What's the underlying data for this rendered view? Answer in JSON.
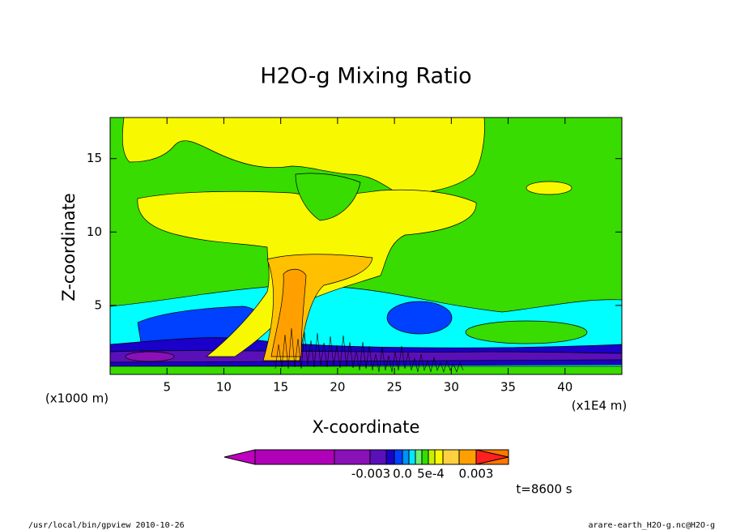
{
  "chart_data": {
    "type": "contour",
    "title": "H2O-g Mixing Ratio",
    "xlabel": "X-coordinate",
    "ylabel": "Z-coordinate",
    "x_unit_left": "(x1000 m)",
    "x_unit_right": "(x1E4 m)",
    "xlim": [
      0,
      45
    ],
    "xticks": [
      5,
      10,
      15,
      20,
      25,
      30,
      35,
      40
    ],
    "ylim": [
      0.3,
      17.8
    ],
    "yticks": [
      5,
      10,
      15
    ],
    "colorbar": {
      "labels": [
        "-0.003",
        "0.0",
        "5e-4",
        "0.003"
      ],
      "colors": [
        "#c000c0",
        "#b000b8",
        "#8a10b8",
        "#5a10b8",
        "#1a00c8",
        "#0040ff",
        "#0090ff",
        "#00e8ff",
        "#70f070",
        "#30e000",
        "#c8f000",
        "#f8f800",
        "#ffd040",
        "#ffa000",
        "#ff7800",
        "#ff2020"
      ]
    },
    "annotation": "t=8600 s",
    "footer_left": "/usr/local/bin/gpview  2010-10-26",
    "footer_right": "arare-earth_H2O-g.nc@H2O-g"
  }
}
